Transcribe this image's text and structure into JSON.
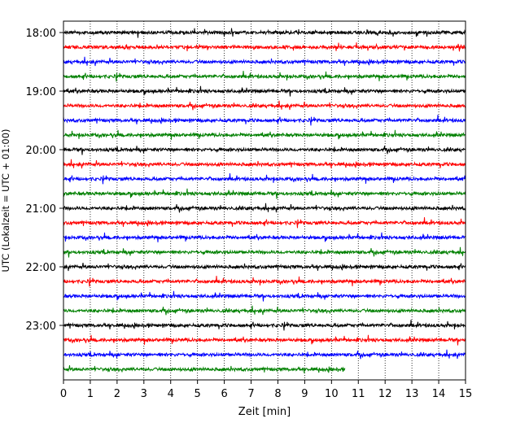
{
  "chart_data": {
    "type": "line",
    "title": "",
    "xlabel": "Zeit  [min]",
    "ylabel": "UTC (Lokalzeit = UTC + 01:00)",
    "xlim": [
      0,
      15
    ],
    "x_ticks": [
      "0",
      "1",
      "2",
      "3",
      "4",
      "5",
      "6",
      "7",
      "8",
      "9",
      "10",
      "11",
      "12",
      "13",
      "14",
      "15"
    ],
    "y_ticks": [
      "18:00",
      "19:00",
      "20:00",
      "21:00",
      "22:00",
      "23:00"
    ],
    "grid": "vertical dotted",
    "trace_interval_min": 15,
    "colors": [
      "#000000",
      "#ff0000",
      "#0000ff",
      "#008000"
    ],
    "series": [
      {
        "start": "18:00",
        "end_min": 15,
        "color": "#000000"
      },
      {
        "start": "18:15",
        "end_min": 15,
        "color": "#ff0000"
      },
      {
        "start": "18:30",
        "end_min": 15,
        "color": "#0000ff"
      },
      {
        "start": "18:45",
        "end_min": 15,
        "color": "#008000"
      },
      {
        "start": "19:00",
        "end_min": 15,
        "color": "#000000"
      },
      {
        "start": "19:15",
        "end_min": 15,
        "color": "#ff0000"
      },
      {
        "start": "19:30",
        "end_min": 15,
        "color": "#0000ff"
      },
      {
        "start": "19:45",
        "end_min": 15,
        "color": "#008000"
      },
      {
        "start": "20:00",
        "end_min": 15,
        "color": "#000000"
      },
      {
        "start": "20:15",
        "end_min": 15,
        "color": "#ff0000"
      },
      {
        "start": "20:30",
        "end_min": 15,
        "color": "#0000ff"
      },
      {
        "start": "20:45",
        "end_min": 15,
        "color": "#008000"
      },
      {
        "start": "21:00",
        "end_min": 15,
        "color": "#000000"
      },
      {
        "start": "21:15",
        "end_min": 15,
        "color": "#ff0000"
      },
      {
        "start": "21:30",
        "end_min": 15,
        "color": "#0000ff"
      },
      {
        "start": "21:45",
        "end_min": 15,
        "color": "#008000"
      },
      {
        "start": "22:00",
        "end_min": 15,
        "color": "#000000"
      },
      {
        "start": "22:15",
        "end_min": 15,
        "color": "#ff0000"
      },
      {
        "start": "22:30",
        "end_min": 15,
        "color": "#0000ff"
      },
      {
        "start": "22:45",
        "end_min": 15,
        "color": "#008000"
      },
      {
        "start": "23:00",
        "end_min": 15,
        "color": "#000000"
      },
      {
        "start": "23:15",
        "end_min": 15,
        "color": "#ff0000"
      },
      {
        "start": "23:30",
        "end_min": 15,
        "color": "#0000ff"
      },
      {
        "start": "23:45",
        "end_min": 10.5,
        "color": "#008000"
      }
    ]
  }
}
